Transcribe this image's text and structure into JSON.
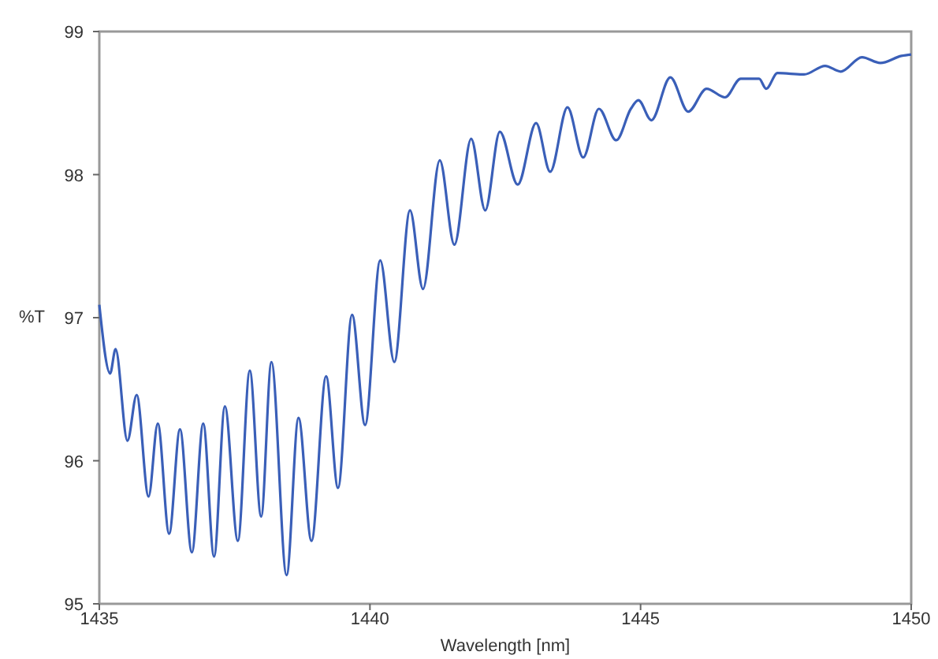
{
  "chart_data": {
    "type": "line",
    "xlabel": "Wavelength [nm]",
    "ylabel": "%T",
    "xlim": [
      1435,
      1450
    ],
    "ylim": [
      95,
      99
    ],
    "xticks": [
      1435,
      1440,
      1445,
      1450
    ],
    "yticks": [
      95,
      96,
      97,
      98,
      99
    ],
    "grid": false,
    "marker": "none",
    "line_style": "solid",
    "x": [
      1435,
      1435.2,
      1435.3,
      1435.52,
      1435.69,
      1435.91,
      1436.08,
      1436.29,
      1436.49,
      1436.71,
      1436.92,
      1437.12,
      1437.32,
      1437.56,
      1437.78,
      1437.99,
      1438.18,
      1438.46,
      1438.68,
      1438.92,
      1439.19,
      1439.41,
      1439.67,
      1439.91,
      1440.19,
      1440.45,
      1440.74,
      1440.98,
      1441.29,
      1441.56,
      1441.87,
      1442.13,
      1442.4,
      1442.73,
      1443.07,
      1443.33,
      1443.65,
      1443.94,
      1444.23,
      1444.55,
      1444.82,
      1444.96,
      1445.2,
      1445.55,
      1445.88,
      1446.22,
      1446.56,
      1446.85,
      1447.19,
      1447.32,
      1447.53,
      1448.02,
      1448.41,
      1448.7,
      1449.09,
      1449.43,
      1449.82,
      1450
    ],
    "series": [
      {
        "color": "#3a5fb8",
        "values": [
          97.09,
          96.61,
          96.78,
          96.14,
          96.46,
          95.75,
          96.26,
          95.49,
          96.22,
          95.36,
          96.26,
          95.33,
          96.38,
          95.44,
          96.63,
          95.61,
          96.69,
          95.2,
          96.3,
          95.44,
          96.59,
          95.81,
          97.02,
          96.25,
          97.4,
          96.69,
          97.75,
          97.2,
          98.1,
          97.51,
          98.25,
          97.75,
          98.3,
          97.93,
          98.36,
          98.02,
          98.47,
          98.12,
          98.46,
          98.24,
          98.46,
          98.52,
          98.38,
          98.68,
          98.44,
          98.6,
          98.54,
          98.67,
          98.67,
          98.6,
          98.71,
          98.7,
          98.76,
          98.72,
          98.82,
          98.78,
          98.83,
          98.84
        ]
      }
    ]
  }
}
